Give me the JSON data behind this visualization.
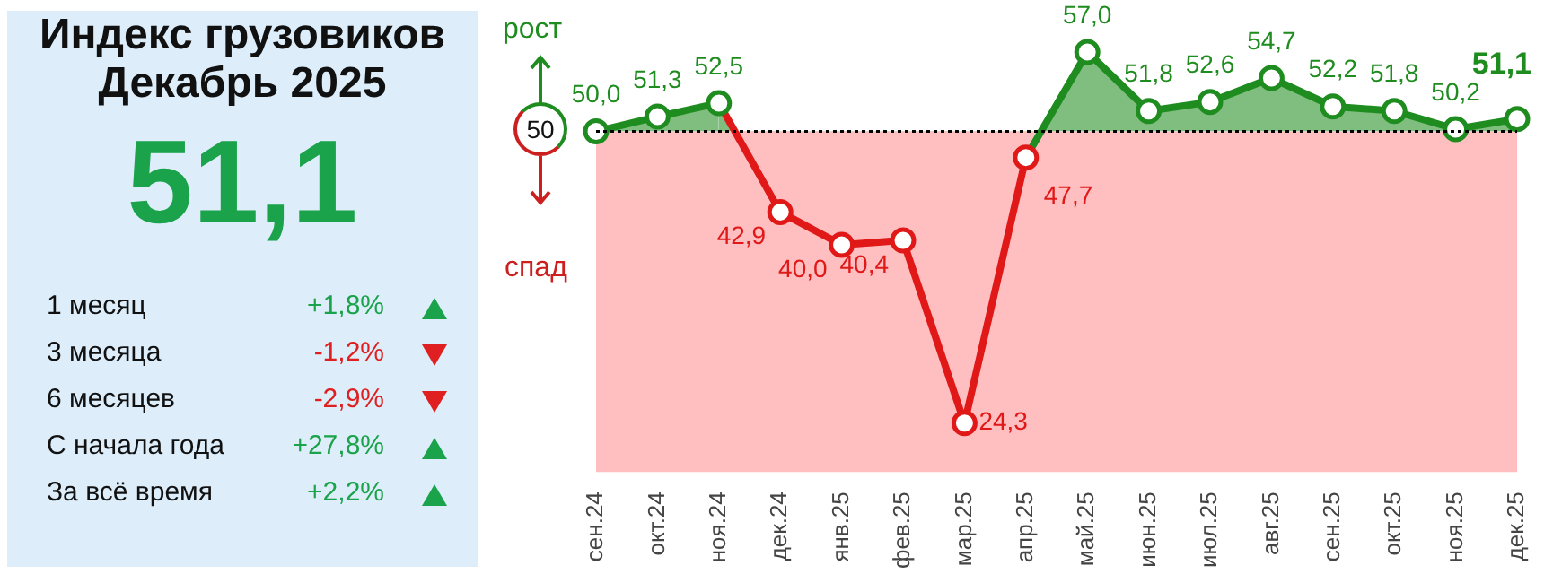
{
  "chart_data": [
    {
      "type": "other",
      "title": "Индекс грузовиков",
      "subtitle": "Декабрь 2025",
      "annotations": [
        "51,1",
        "1 месяц",
        "+1,8%",
        "3 месяца",
        "-1,2%",
        "6 месяцев",
        "-2,9%",
        "С начала года",
        "+27,8%",
        "За всё время",
        "+2,2%"
      ]
    },
    {
      "type": "line",
      "categories": [
        "сен.24",
        "окт.24",
        "ноя.24",
        "дек.24",
        "янв.25",
        "фев.25",
        "мар.25",
        "апр.25",
        "май.25",
        "июн.25",
        "июл.25",
        "авг.25",
        "сен.25",
        "окт.25",
        "ноя.25",
        "дек.25"
      ],
      "series": [
        {
          "type": "area",
          "color": "#1e8c1e",
          "values": [
            50.0,
            51.3,
            52.5,
            42.9,
            40.0,
            40.4,
            24.3,
            47.7,
            57.0,
            51.8,
            52.6,
            54.7,
            52.2,
            51.8,
            50.2,
            51.1
          ],
          "value_labels": [
            "50,0",
            "51,3",
            "52,5",
            "42,9",
            "40,0",
            "40,4",
            "24,3",
            "47,7",
            "57,0",
            "51,8",
            "52,6",
            "54,7",
            "52,2",
            "51,8",
            "50,2",
            "51,1"
          ],
          "colors": [
            "#1e8c1e",
            "#1e8c1e",
            "#1e8c1e",
            "#e01818",
            "#e01818",
            "#e01818",
            "#e01818",
            "#e01818",
            "#1e8c1e",
            "#1e8c1e",
            "#1e8c1e",
            "#1e8c1e",
            "#1e8c1e",
            "#1e8c1e",
            "#1e8c1e",
            "#1e8c1e"
          ]
        }
      ],
      "tick_labels": "x",
      "grid": false,
      "legend": false,
      "marker": "circle",
      "ref_lines": [
        {
          "axis": "y",
          "value": 50,
          "label": "50",
          "color": "#000000",
          "line_style": "dotted"
        }
      ],
      "bands": [
        {
          "axis": "y",
          "from": 20,
          "to": 50,
          "color": "#ffbfc0"
        }
      ],
      "annotations": [
        "рост",
        "спад"
      ]
    }
  ]
}
